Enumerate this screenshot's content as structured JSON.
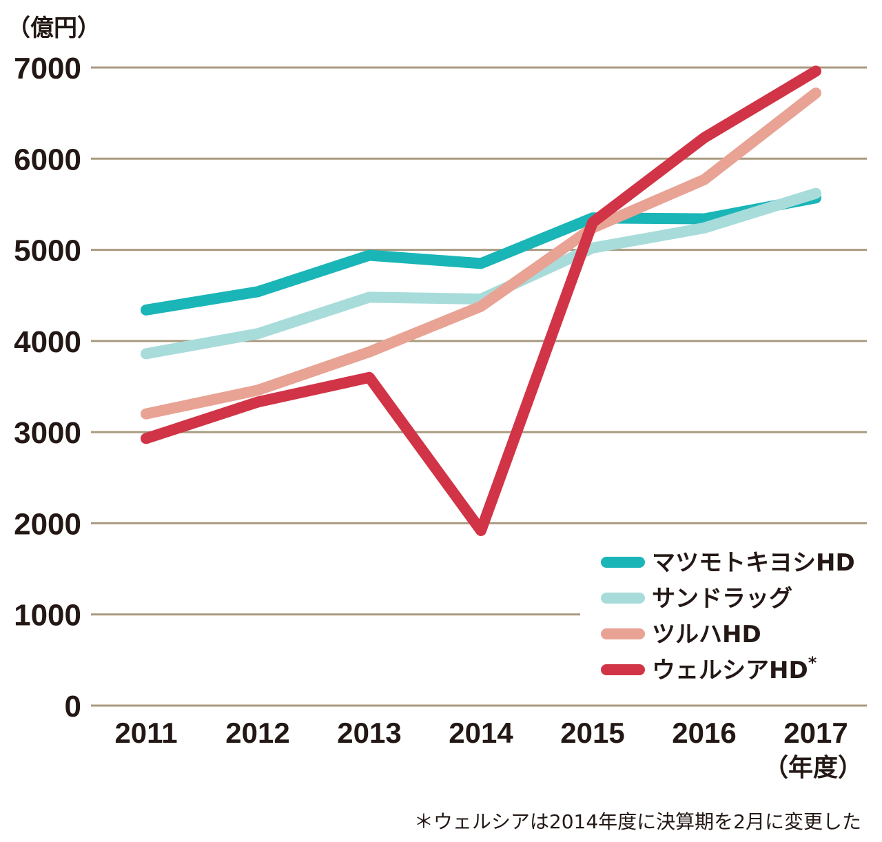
{
  "chart_data": {
    "type": "line",
    "y_unit_label": "（億円）",
    "x_unit_label": "（年度）",
    "categories": [
      "2011",
      "2012",
      "2013",
      "2014",
      "2015",
      "2016",
      "2017"
    ],
    "y_ticks": [
      0,
      1000,
      2000,
      3000,
      4000,
      5000,
      6000,
      7000
    ],
    "ylim": [
      0,
      7000
    ],
    "grid": true,
    "legend_position": "bottom-right",
    "series": [
      {
        "name": "マツモトキヨシHD",
        "color": "#1ab5b7",
        "values": [
          4340,
          4540,
          4940,
          4850,
          5350,
          5340,
          5570
        ]
      },
      {
        "name": "サンドラッグ",
        "color": "#a8dcdb",
        "values": [
          3860,
          4080,
          4480,
          4460,
          5020,
          5240,
          5620
        ]
      },
      {
        "name": "ツルハHD",
        "color": "#e8a394",
        "values": [
          3200,
          3460,
          3880,
          4380,
          5240,
          5770,
          6720
        ]
      },
      {
        "name": "ウェルシアHD",
        "name_suffix": "*",
        "color": "#d13446",
        "values": [
          2930,
          3330,
          3600,
          1920,
          5300,
          6230,
          6960
        ]
      }
    ],
    "footnote": "＊ウェルシアは2014年度に決算期を2月に変更した"
  }
}
